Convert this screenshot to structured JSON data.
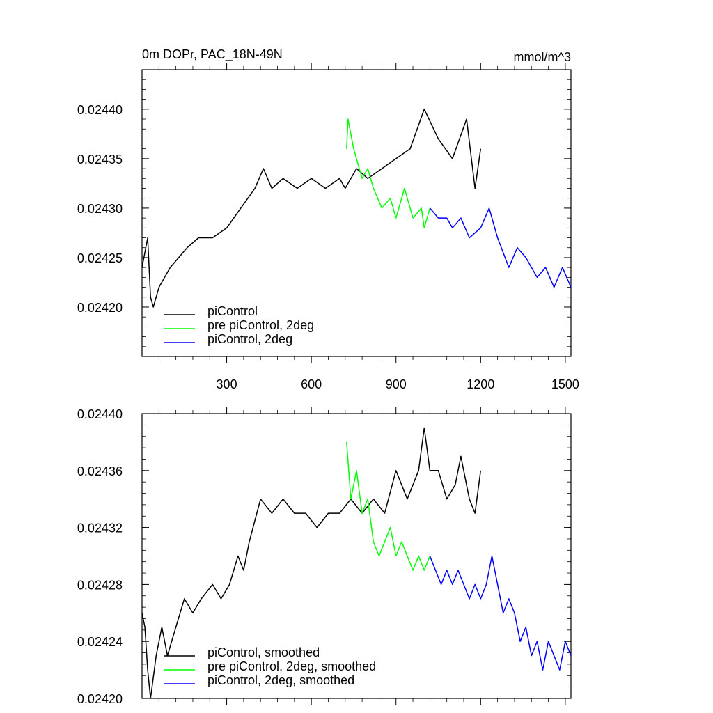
{
  "chart_data": [
    {
      "type": "line",
      "title": "0m DOPr, PAC_18N-49N",
      "units": "mmol/m^3",
      "xlabel": "",
      "ylabel": "",
      "xlim": [
        0,
        1520
      ],
      "ylim": [
        0.02415,
        0.02444
      ],
      "xticks": [
        300,
        600,
        900,
        1200,
        1500
      ],
      "yticks": [
        0.0242,
        0.02425,
        0.0243,
        0.02435,
        0.0244
      ],
      "ytick_labels": [
        "0.02420",
        "0.02425",
        "0.02430",
        "0.02435",
        "0.02440"
      ],
      "legend_position": "bottom-left",
      "series": [
        {
          "name": "piControl",
          "color": "#000000",
          "x": [
            0,
            20,
            30,
            40,
            60,
            80,
            100,
            130,
            160,
            200,
            250,
            300,
            350,
            400,
            430,
            460,
            500,
            550,
            600,
            650,
            700,
            720,
            760,
            800,
            850,
            900,
            950,
            1000,
            1050,
            1100,
            1150,
            1180,
            1200
          ],
          "y": [
            0.02424,
            0.02427,
            0.02421,
            0.0242,
            0.02422,
            0.02423,
            0.02424,
            0.02425,
            0.02426,
            0.02427,
            0.02427,
            0.02428,
            0.0243,
            0.02432,
            0.02434,
            0.02432,
            0.02433,
            0.02432,
            0.02433,
            0.02432,
            0.02433,
            0.02432,
            0.02434,
            0.02433,
            0.02434,
            0.02435,
            0.02436,
            0.0244,
            0.02437,
            0.02435,
            0.02439,
            0.02432,
            0.02436
          ]
        },
        {
          "name": "pre piControl, 2deg",
          "color": "#00ff00",
          "x": [
            725,
            730,
            750,
            780,
            800,
            820,
            850,
            880,
            900,
            930,
            960,
            990,
            1000,
            1020
          ],
          "y": [
            0.02436,
            0.02439,
            0.02436,
            0.02433,
            0.02434,
            0.02432,
            0.0243,
            0.02431,
            0.02429,
            0.02432,
            0.02429,
            0.0243,
            0.02428,
            0.0243
          ]
        },
        {
          "name": "piControl, 2deg",
          "color": "#0000ff",
          "x": [
            1020,
            1050,
            1080,
            1100,
            1130,
            1160,
            1200,
            1230,
            1260,
            1300,
            1330,
            1360,
            1400,
            1430,
            1460,
            1490,
            1520
          ],
          "y": [
            0.0243,
            0.02429,
            0.02429,
            0.02428,
            0.02429,
            0.02427,
            0.02428,
            0.0243,
            0.02427,
            0.02424,
            0.02426,
            0.02425,
            0.02423,
            0.02424,
            0.02422,
            0.02424,
            0.02422
          ]
        }
      ]
    },
    {
      "type": "line",
      "title": "",
      "xlabel": "",
      "ylabel": "",
      "xlim": [
        0,
        1520
      ],
      "ylim": [
        0.0242,
        0.0244
      ],
      "xticks": [
        300,
        600,
        900,
        1200,
        1500
      ],
      "yticks": [
        0.0242,
        0.02424,
        0.02428,
        0.02432,
        0.02436,
        0.0244
      ],
      "ytick_labels": [
        "0.02420",
        "0.02424",
        "0.02428",
        "0.02432",
        "0.02436",
        "0.02440"
      ],
      "legend_position": "bottom-left",
      "series": [
        {
          "name": "piControl, smoothed",
          "color": "#000000",
          "x": [
            0,
            10,
            20,
            30,
            50,
            70,
            90,
            120,
            150,
            180,
            210,
            250,
            280,
            310,
            340,
            360,
            380,
            420,
            460,
            500,
            540,
            580,
            620,
            660,
            700,
            740,
            780,
            820,
            860,
            900,
            940,
            980,
            1000,
            1020,
            1050,
            1080,
            1110,
            1130,
            1160,
            1180,
            1200
          ],
          "y": [
            0.02426,
            0.02425,
            0.02422,
            0.0242,
            0.02423,
            0.02425,
            0.02423,
            0.02425,
            0.02427,
            0.02426,
            0.02427,
            0.02428,
            0.02427,
            0.02428,
            0.0243,
            0.02429,
            0.02431,
            0.02434,
            0.02433,
            0.02434,
            0.02433,
            0.02433,
            0.02432,
            0.02433,
            0.02433,
            0.02434,
            0.02433,
            0.02434,
            0.02433,
            0.02436,
            0.02434,
            0.02436,
            0.02439,
            0.02436,
            0.02436,
            0.02434,
            0.02435,
            0.02437,
            0.02434,
            0.02433,
            0.02436
          ]
        },
        {
          "name": "pre piControl, 2deg, smoothed",
          "color": "#00ff00",
          "x": [
            725,
            740,
            760,
            780,
            800,
            820,
            840,
            860,
            880,
            900,
            920,
            940,
            960,
            980,
            1000,
            1020
          ],
          "y": [
            0.02438,
            0.02434,
            0.02436,
            0.02433,
            0.02434,
            0.02431,
            0.0243,
            0.02431,
            0.02432,
            0.0243,
            0.02431,
            0.0243,
            0.02429,
            0.0243,
            0.02429,
            0.0243
          ]
        },
        {
          "name": "piControl, 2deg, smoothed",
          "color": "#0000ff",
          "x": [
            1020,
            1040,
            1060,
            1080,
            1100,
            1120,
            1140,
            1160,
            1180,
            1200,
            1220,
            1240,
            1260,
            1280,
            1300,
            1320,
            1340,
            1360,
            1380,
            1400,
            1420,
            1440,
            1460,
            1480,
            1500,
            1520
          ],
          "y": [
            0.0243,
            0.02429,
            0.02428,
            0.02429,
            0.02428,
            0.02429,
            0.02428,
            0.02427,
            0.02428,
            0.02427,
            0.02428,
            0.0243,
            0.02428,
            0.02426,
            0.02427,
            0.02426,
            0.02424,
            0.02425,
            0.02423,
            0.02424,
            0.02422,
            0.02424,
            0.02423,
            0.02422,
            0.02424,
            0.02423
          ]
        }
      ]
    }
  ]
}
